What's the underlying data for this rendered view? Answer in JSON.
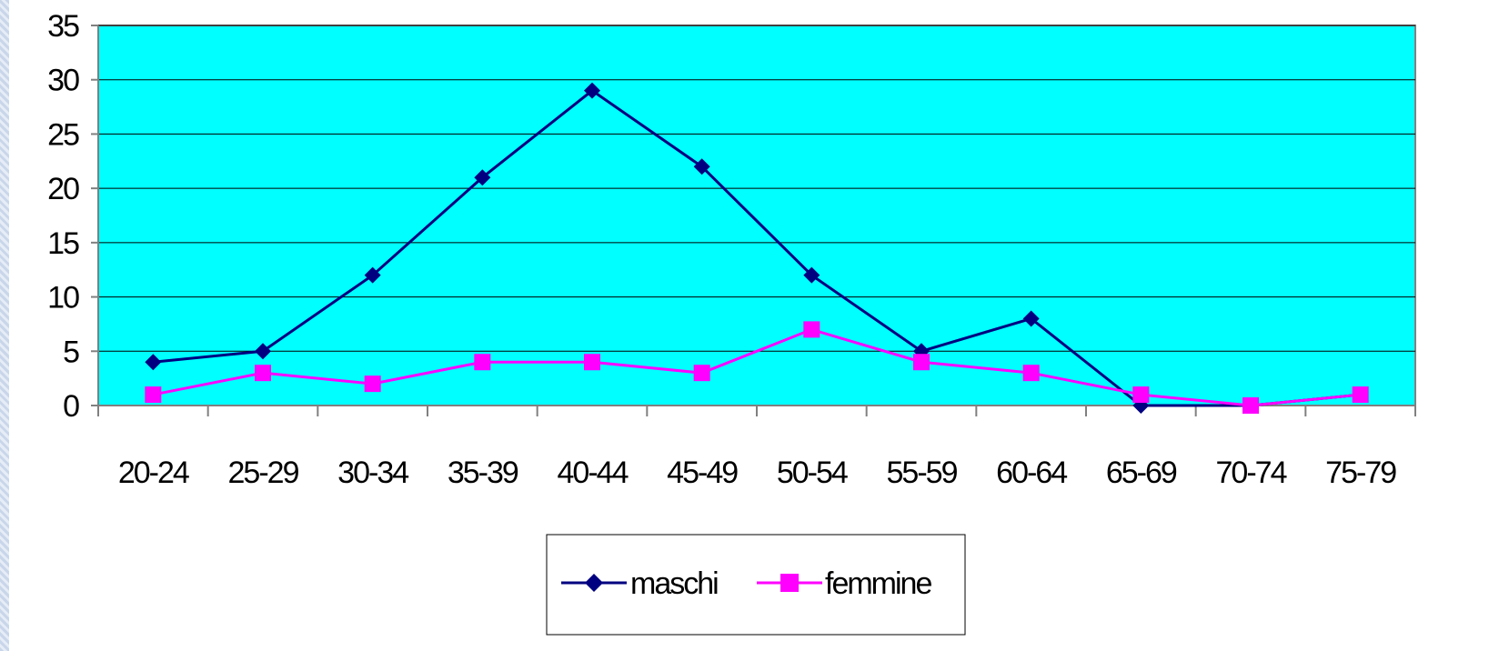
{
  "chart_data": {
    "type": "line",
    "categories": [
      "20-24",
      "25-29",
      "30-34",
      "35-39",
      "40-44",
      "45-49",
      "50-54",
      "55-59",
      "60-64",
      "65-69",
      "70-74",
      "75-79"
    ],
    "series": [
      {
        "name": "maschi",
        "values": [
          4,
          5,
          12,
          21,
          29,
          22,
          12,
          5,
          8,
          0,
          0,
          1
        ],
        "color": "#000080",
        "marker": "diamond"
      },
      {
        "name": "femmine",
        "values": [
          1,
          3,
          2,
          4,
          4,
          3,
          7,
          4,
          3,
          1,
          0,
          1
        ],
        "color": "#ff00ff",
        "marker": "square"
      }
    ],
    "title": "",
    "xlabel": "",
    "ylabel": "",
    "ylim": [
      0,
      35
    ],
    "yticks": [
      "0",
      "5",
      "10",
      "15",
      "20",
      "25",
      "30",
      "35"
    ],
    "plot_background": "#00ffff",
    "grid": true,
    "legend_position": "bottom"
  }
}
